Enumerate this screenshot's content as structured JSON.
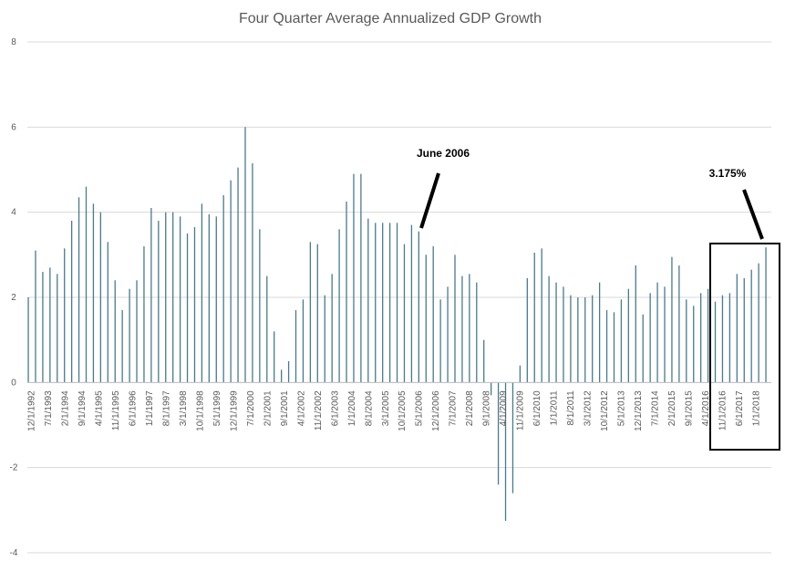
{
  "chart_data": {
    "type": "bar",
    "title": "Four Quarter Average Annualized GDP Growth",
    "xlabel": "",
    "ylabel": "",
    "ylim": [
      -4,
      8
    ],
    "yticks": [
      -4,
      -2,
      0,
      2,
      4,
      6,
      8
    ],
    "grid": true,
    "legend": "none",
    "bar_color": "#4a7a8c",
    "x_tick_labels": [
      "12/1/1992",
      "7/1/1993",
      "2/1/1994",
      "9/1/1994",
      "4/1/1995",
      "11/1/1995",
      "6/1/1996",
      "1/1/1997",
      "8/1/1997",
      "3/1/1998",
      "10/1/1998",
      "5/1/1999",
      "12/1/1999",
      "7/1/2000",
      "2/1/2001",
      "9/1/2001",
      "4/1/2002",
      "11/1/2002",
      "6/1/2003",
      "1/1/2004",
      "8/1/2004",
      "3/1/2005",
      "10/1/2005",
      "5/1/2006",
      "12/1/2006",
      "7/1/2007",
      "2/1/2008",
      "9/1/2008",
      "4/1/2009",
      "11/1/2009",
      "6/1/2010",
      "1/1/2011",
      "8/1/2011",
      "3/1/2012",
      "10/1/2012",
      "5/1/2013",
      "12/1/2013",
      "7/1/2014",
      "2/1/2015",
      "9/1/2015",
      "4/1/2016",
      "11/1/2016",
      "6/1/2017",
      "1/1/2018"
    ],
    "values": [
      2.0,
      3.1,
      2.6,
      2.7,
      2.55,
      3.15,
      3.8,
      4.35,
      4.6,
      4.2,
      4.0,
      3.3,
      2.4,
      1.7,
      2.2,
      2.4,
      3.2,
      4.1,
      3.8,
      4.0,
      4.0,
      3.9,
      3.5,
      3.65,
      4.2,
      3.95,
      3.9,
      4.4,
      4.75,
      5.05,
      6.0,
      5.15,
      3.6,
      2.5,
      1.2,
      0.3,
      0.5,
      1.7,
      1.95,
      3.3,
      3.25,
      2.05,
      2.55,
      3.6,
      4.25,
      4.9,
      4.9,
      3.85,
      3.75,
      3.75,
      3.75,
      3.75,
      3.25,
      3.7,
      3.55,
      3.0,
      3.2,
      1.95,
      2.25,
      3.0,
      2.5,
      2.55,
      2.35,
      1.0,
      -0.3,
      -2.4,
      -3.25,
      -2.6,
      0.4,
      2.45,
      3.05,
      3.15,
      2.5,
      2.35,
      2.25,
      2.05,
      2.0,
      2.0,
      2.05,
      2.35,
      1.7,
      1.65,
      1.95,
      2.2,
      2.75,
      1.6,
      2.1,
      2.35,
      2.25,
      2.95,
      2.75,
      1.95,
      1.8,
      2.1,
      2.2,
      1.9,
      2.05,
      2.1,
      2.55,
      2.45,
      2.65,
      2.8,
      3.175
    ],
    "annotations": [
      {
        "text": "June 2006"
      },
      {
        "text": "3.175%"
      }
    ]
  }
}
